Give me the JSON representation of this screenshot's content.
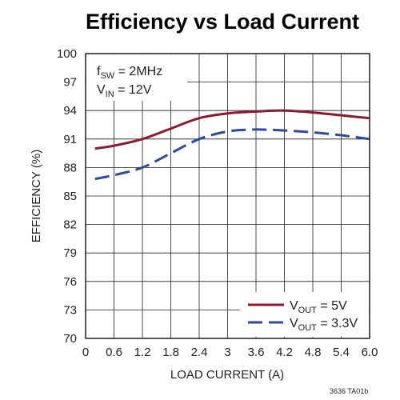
{
  "chart_data": {
    "type": "line",
    "title": "Efficiency vs Load Current",
    "xlabel": "LOAD CURRENT (A)",
    "ylabel": "EFFICIENCY (%)",
    "xlim": [
      0,
      6.0
    ],
    "ylim": [
      70,
      100
    ],
    "x_ticks": [
      "0",
      "0.6",
      "1.2",
      "1.8",
      "2.4",
      "3",
      "3.6",
      "4.2",
      "4.8",
      "5.4",
      "6.0"
    ],
    "y_ticks": [
      "70",
      "73",
      "76",
      "79",
      "82",
      "85",
      "88",
      "91",
      "94",
      "97",
      "100"
    ],
    "grid": true,
    "conditions": [
      {
        "main": "f",
        "sub": "SW",
        "rest": " = 2MHz"
      },
      {
        "main": "V",
        "sub": "IN",
        "rest": " = 12V"
      }
    ],
    "legend_position": "bottom-right",
    "series": [
      {
        "name": "VOUT = 5V",
        "legend": {
          "main": "V",
          "sub": "OUT",
          "rest": " = 5V"
        },
        "color": "#8b1a2e",
        "dash": "solid",
        "x": [
          0.2,
          0.6,
          1.2,
          1.8,
          2.4,
          3.0,
          3.6,
          4.2,
          4.8,
          5.4,
          6.0
        ],
        "y": [
          90.0,
          90.3,
          91.0,
          92.1,
          93.2,
          93.7,
          93.9,
          94.0,
          93.8,
          93.5,
          93.2
        ]
      },
      {
        "name": "VOUT = 3.3V",
        "legend": {
          "main": "V",
          "sub": "OUT",
          "rest": " = 3.3V"
        },
        "color": "#2e4a9e",
        "dash": "dashed",
        "x": [
          0.2,
          0.6,
          1.2,
          1.8,
          2.4,
          3.0,
          3.6,
          4.2,
          4.8,
          5.4,
          6.0
        ],
        "y": [
          86.8,
          87.2,
          88.0,
          89.5,
          91.0,
          91.8,
          92.0,
          91.9,
          91.7,
          91.4,
          91.0
        ]
      }
    ],
    "figure_id": "3636 TA01b"
  }
}
